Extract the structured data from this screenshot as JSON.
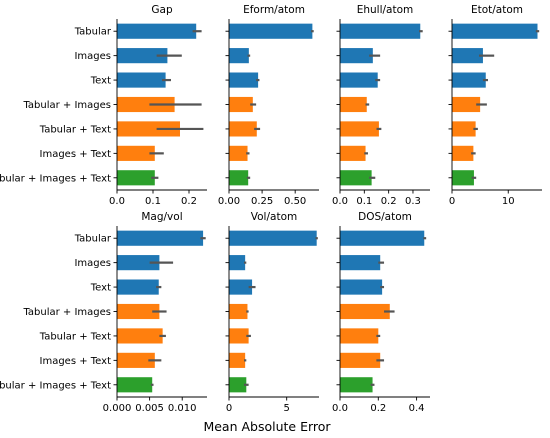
{
  "figure": {
    "xlabel": "Mean Absolute Error"
  },
  "colors": {
    "tabular": "#1f77b4",
    "combo2": "#ff7f0e",
    "all": "#2ca02c",
    "errorbar": "#555555"
  },
  "chart_data": {
    "type": "bar",
    "orientation": "horizontal",
    "categories": [
      "Tabular",
      "Images",
      "Text",
      "Tabular + Images",
      "Tabular + Text",
      "Images + Text",
      "Tabular + Images + Text"
    ],
    "category_colors": [
      "tabular",
      "tabular",
      "tabular",
      "combo2",
      "combo2",
      "combo2",
      "all"
    ],
    "xlabel": "Mean Absolute Error",
    "panels": [
      {
        "title": "Gap",
        "xlim": [
          0,
          0.25
        ],
        "xticks": [
          0.0,
          0.1,
          0.2
        ],
        "xtick_labels": [
          "0.0",
          "0.1",
          "0.2"
        ],
        "values": [
          0.22,
          0.14,
          0.135,
          0.16,
          0.175,
          0.105,
          0.105
        ],
        "errors": [
          [
            0.21,
            0.235
          ],
          [
            0.11,
            0.18
          ],
          [
            0.125,
            0.15
          ],
          [
            0.09,
            0.235
          ],
          [
            0.11,
            0.24
          ],
          [
            0.09,
            0.13
          ],
          [
            0.095,
            0.115
          ]
        ],
        "show_yticklabels": true
      },
      {
        "title": "Eform/atom",
        "xlim": [
          0,
          0.68
        ],
        "xticks": [
          0.0,
          0.25,
          0.5
        ],
        "xtick_labels": [
          "0.00",
          "0.25",
          "0.50"
        ],
        "values": [
          0.63,
          0.15,
          0.22,
          0.18,
          0.21,
          0.14,
          0.145
        ],
        "errors": [
          [
            0.62,
            0.64
          ],
          [
            0.14,
            0.16
          ],
          [
            0.205,
            0.23
          ],
          [
            0.16,
            0.205
          ],
          [
            0.19,
            0.235
          ],
          [
            0.13,
            0.155
          ],
          [
            0.135,
            0.16
          ]
        ],
        "show_yticklabels": false
      },
      {
        "title": "Ehull/atom",
        "xlim": [
          0,
          0.37
        ],
        "xticks": [
          0.0,
          0.1,
          0.2,
          0.3
        ],
        "xtick_labels": [
          "0.0",
          "0.1",
          "0.2",
          "0.3"
        ],
        "values": [
          0.33,
          0.135,
          0.155,
          0.11,
          0.16,
          0.105,
          0.13
        ],
        "errors": [
          [
            0.325,
            0.34
          ],
          [
            0.12,
            0.165
          ],
          [
            0.145,
            0.165
          ],
          [
            0.105,
            0.12
          ],
          [
            0.15,
            0.17
          ],
          [
            0.1,
            0.115
          ],
          [
            0.12,
            0.145
          ]
        ],
        "show_yticklabels": false
      },
      {
        "title": "Etot/atom",
        "xlim": [
          0,
          16
        ],
        "xticks": [
          0,
          10
        ],
        "xtick_labels": [
          "0",
          "10"
        ],
        "values": [
          15.2,
          5.5,
          6.0,
          5.0,
          4.2,
          3.8,
          3.9
        ],
        "errors": [
          [
            14.9,
            15.5
          ],
          [
            4.8,
            7.5
          ],
          [
            5.5,
            6.4
          ],
          [
            4.3,
            6.2
          ],
          [
            3.8,
            4.6
          ],
          [
            3.4,
            4.2
          ],
          [
            3.5,
            4.3
          ]
        ],
        "show_yticklabels": false
      },
      {
        "title": "Mag/vol",
        "xlim": [
          0,
          0.0138
        ],
        "xticks": [
          0.0,
          0.005,
          0.01
        ],
        "xtick_labels": [
          "0.000",
          "0.005",
          "0.010"
        ],
        "values": [
          0.0132,
          0.0065,
          0.0064,
          0.0065,
          0.007,
          0.0058,
          0.0054
        ],
        "errors": [
          [
            0.0128,
            0.0136
          ],
          [
            0.005,
            0.0086
          ],
          [
            0.006,
            0.0068
          ],
          [
            0.0054,
            0.0076
          ],
          [
            0.0065,
            0.0075
          ],
          [
            0.0048,
            0.0068
          ],
          [
            0.0052,
            0.0056
          ]
        ],
        "show_yticklabels": true
      },
      {
        "title": "Vol/atom",
        "xlim": [
          0,
          7.8
        ],
        "xticks": [
          0,
          5
        ],
        "xtick_labels": [
          "0",
          "5"
        ],
        "values": [
          7.6,
          1.4,
          2.0,
          1.6,
          1.7,
          1.4,
          1.5
        ],
        "errors": [
          [
            7.5,
            7.7
          ],
          [
            1.3,
            1.5
          ],
          [
            1.7,
            2.3
          ],
          [
            1.5,
            1.7
          ],
          [
            1.5,
            1.9
          ],
          [
            1.3,
            1.5
          ],
          [
            1.3,
            1.7
          ]
        ],
        "show_yticklabels": false
      },
      {
        "title": "DOS/atom",
        "xlim": [
          0,
          0.47
        ],
        "xticks": [
          0.0,
          0.2,
          0.4
        ],
        "xtick_labels": [
          "0.0",
          "0.2",
          "0.4"
        ],
        "values": [
          0.44,
          0.21,
          0.22,
          0.26,
          0.2,
          0.21,
          0.17
        ],
        "errors": [
          [
            0.435,
            0.45
          ],
          [
            0.2,
            0.23
          ],
          [
            0.21,
            0.23
          ],
          [
            0.23,
            0.285
          ],
          [
            0.19,
            0.21
          ],
          [
            0.19,
            0.23
          ],
          [
            0.16,
            0.18
          ]
        ],
        "show_yticklabels": false
      }
    ]
  }
}
